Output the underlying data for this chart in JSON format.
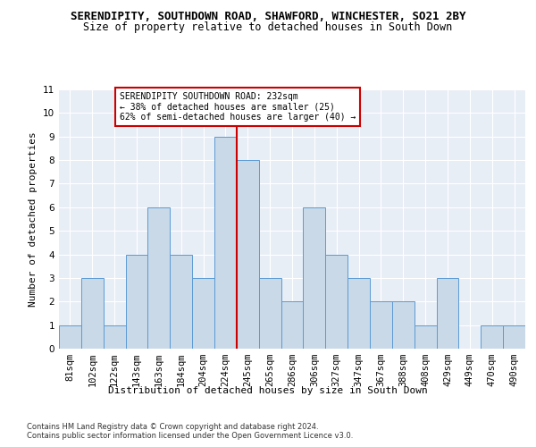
{
  "title": "SERENDIPITY, SOUTHDOWN ROAD, SHAWFORD, WINCHESTER, SO21 2BY",
  "subtitle": "Size of property relative to detached houses in South Down",
  "xlabel": "Distribution of detached houses by size in South Down",
  "ylabel": "Number of detached properties",
  "bar_labels": [
    "81sqm",
    "102sqm",
    "122sqm",
    "143sqm",
    "163sqm",
    "184sqm",
    "204sqm",
    "224sqm",
    "245sqm",
    "265sqm",
    "286sqm",
    "306sqm",
    "327sqm",
    "347sqm",
    "367sqm",
    "388sqm",
    "408sqm",
    "429sqm",
    "449sqm",
    "470sqm",
    "490sqm"
  ],
  "bar_values": [
    1,
    3,
    1,
    4,
    6,
    4,
    3,
    9,
    8,
    3,
    2,
    6,
    4,
    3,
    2,
    2,
    1,
    3,
    0,
    1,
    1
  ],
  "bar_color": "#c9d9e8",
  "bar_edge_color": "#5b9bd5",
  "vline_color": "#cc0000",
  "annotation_text": "SERENDIPITY SOUTHDOWN ROAD: 232sqm\n← 38% of detached houses are smaller (25)\n62% of semi-detached houses are larger (40) →",
  "annotation_box_color": "#ffffff",
  "annotation_box_edge": "#cc0000",
  "ylim": [
    0,
    11
  ],
  "yticks": [
    0,
    1,
    2,
    3,
    4,
    5,
    6,
    7,
    8,
    9,
    10,
    11
  ],
  "background_color": "#e8eef6",
  "footnote1": "Contains HM Land Registry data © Crown copyright and database right 2024.",
  "footnote2": "Contains public sector information licensed under the Open Government Licence v3.0.",
  "title_fontsize": 9,
  "subtitle_fontsize": 8.5,
  "axis_label_fontsize": 8,
  "tick_fontsize": 7.5,
  "ylabel_fontsize": 8
}
